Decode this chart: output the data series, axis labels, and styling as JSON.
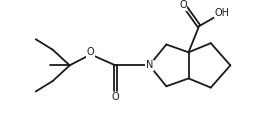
{
  "background": "#ffffff",
  "line_color": "#1a1a1a",
  "line_width": 1.3,
  "font_size": 7.0,
  "fig_width": 2.7,
  "fig_height": 1.32,
  "dpi": 100,
  "xlim": [
    0,
    10
  ],
  "ylim": [
    0,
    4.9
  ]
}
